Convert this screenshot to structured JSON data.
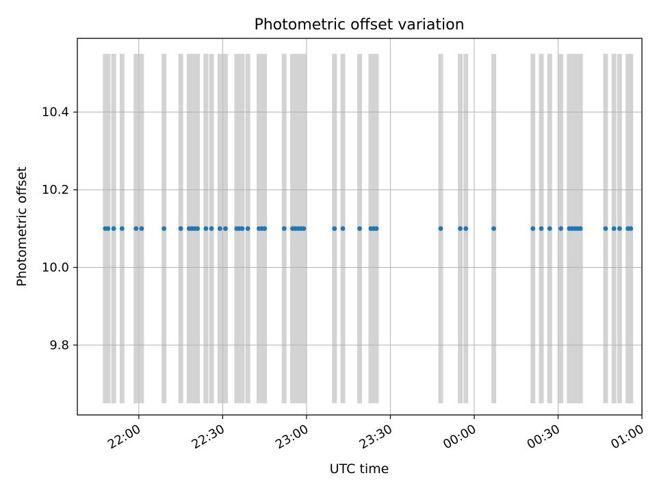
{
  "chart_data": {
    "type": "scatter",
    "title": "Photometric offset variation",
    "xlabel": "UTC time",
    "ylabel": "Photometric offset",
    "grid": true,
    "xlim": [
      "21:38",
      "01:00"
    ],
    "ylim": [
      9.62,
      10.59
    ],
    "x_ticks": [
      "22:00",
      "22:30",
      "23:00",
      "23:30",
      "00:00",
      "00:30",
      "01:00"
    ],
    "y_ticks": [
      "9.8",
      "10.0",
      "10.2",
      "10.4"
    ],
    "y_tick_values": [
      9.8,
      10.0,
      10.2,
      10.4
    ],
    "band_range": [
      9.65,
      10.55
    ],
    "band_color": "#d3d3d3",
    "series": [
      {
        "color": "#1f77b4",
        "x": [
          "21:48",
          "21:49",
          "21:51",
          "21:54",
          "21:59",
          "22:01",
          "22:09",
          "22:15",
          "22:18",
          "22:19",
          "22:20",
          "22:21",
          "22:24",
          "22:26",
          "22:29",
          "22:31",
          "22:35",
          "22:36",
          "22:37",
          "22:39",
          "22:43",
          "22:44",
          "22:45",
          "22:52",
          "22:55",
          "22:56",
          "22:57",
          "22:58",
          "22:59",
          "23:10",
          "23:13",
          "23:19",
          "23:23",
          "23:24",
          "23:25",
          "23:48",
          "23:55",
          "23:57",
          "00:07",
          "00:21",
          "00:24",
          "00:27",
          "00:31",
          "00:34",
          "00:35",
          "00:36",
          "00:37",
          "00:38",
          "00:47",
          "00:50",
          "00:52",
          "00:55",
          "00:56"
        ],
        "y": [
          10.1,
          10.1,
          10.1,
          10.1,
          10.1,
          10.1,
          10.1,
          10.1,
          10.1,
          10.1,
          10.1,
          10.1,
          10.1,
          10.1,
          10.1,
          10.1,
          10.1,
          10.1,
          10.1,
          10.1,
          10.1,
          10.1,
          10.1,
          10.1,
          10.1,
          10.1,
          10.1,
          10.1,
          10.1,
          10.1,
          10.1,
          10.1,
          10.1,
          10.1,
          10.1,
          10.1,
          10.1,
          10.1,
          10.1,
          10.1,
          10.1,
          10.1,
          10.1,
          10.1,
          10.1,
          10.1,
          10.1,
          10.1,
          10.1,
          10.1,
          10.1,
          10.1,
          10.1
        ]
      }
    ]
  }
}
